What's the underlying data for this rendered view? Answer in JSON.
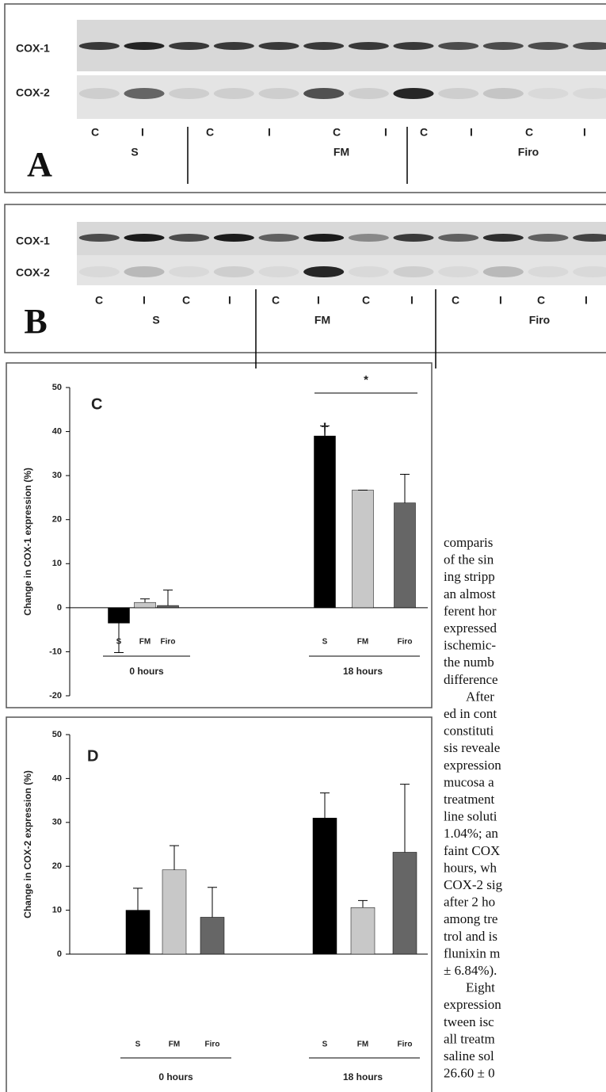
{
  "blots": [
    {
      "label": "A",
      "rows": [
        "COX-1",
        "COX-2"
      ],
      "lanes": [
        "C",
        "I",
        "C",
        "I",
        "C",
        "I",
        "C",
        "I",
        "C",
        "I"
      ],
      "groups": [
        "S",
        "FM",
        "Firo"
      ]
    },
    {
      "label": "B",
      "rows": [
        "COX-1",
        "COX-2"
      ],
      "lanes": [
        "C",
        "I",
        "C",
        "I",
        "C",
        "I",
        "C",
        "I",
        "C",
        "I",
        "C",
        "I"
      ],
      "groups": [
        "S",
        "FM",
        "Firo"
      ]
    }
  ],
  "chart_data": [
    {
      "type": "bar",
      "panel_label": "C",
      "ylabel": "Change in COX-1 expression (%)",
      "categories": [
        "S",
        "FM",
        "Firo",
        "S",
        "FM",
        "Firo"
      ],
      "group_labels": [
        "0 hours",
        "18 hours"
      ],
      "values": [
        -3.5,
        1.2,
        0.5,
        39,
        26.7,
        23.8
      ],
      "errors": [
        6.7,
        0.8,
        3.5,
        2.3,
        0,
        6.5
      ],
      "colors": [
        "#000000",
        "#c8c8c8",
        "#666666",
        "#000000",
        "#c8c8c8",
        "#666666"
      ],
      "ylim": [
        -20,
        50
      ],
      "yticks": [
        -20,
        -10,
        0,
        10,
        20,
        30,
        40,
        50
      ],
      "annotations": [
        "*",
        "†"
      ]
    },
    {
      "type": "bar",
      "panel_label": "D",
      "ylabel": "Change in COX-2 expression (%)",
      "categories": [
        "S",
        "FM",
        "Firo",
        "S",
        "FM",
        "Firo"
      ],
      "group_labels": [
        "0 hours",
        "18 hours"
      ],
      "values": [
        10,
        19.2,
        8.4,
        31,
        10.6,
        23.2
      ],
      "errors": [
        5,
        5.5,
        6.8,
        5.7,
        1.6,
        15.5
      ],
      "colors": [
        "#000000",
        "#c8c8c8",
        "#666666",
        "#000000",
        "#c8c8c8",
        "#666666"
      ],
      "ylim": [
        0,
        50
      ],
      "yticks": [
        0,
        10,
        20,
        30,
        40,
        50
      ]
    }
  ],
  "body_text": {
    "lines": [
      "comparis",
      "of the sin",
      "ing stripp",
      "an almost",
      "ferent hor",
      "expressed",
      "ischemic-",
      "the numb",
      "difference",
      "After",
      "ed in cont",
      "constituti",
      "sis reveale",
      "expression",
      "mucosa a",
      "treatment",
      "line soluti",
      "1.04%; an",
      "faint COX",
      "hours, wh",
      "COX-2 sig",
      "after 2 ho",
      "among tre",
      "trol and is",
      "flunixin m",
      "± 6.84%).",
      "Eight",
      "expression",
      "tween isc",
      "all treatm",
      "saline sol",
      "26.60 ± 0"
    ]
  }
}
